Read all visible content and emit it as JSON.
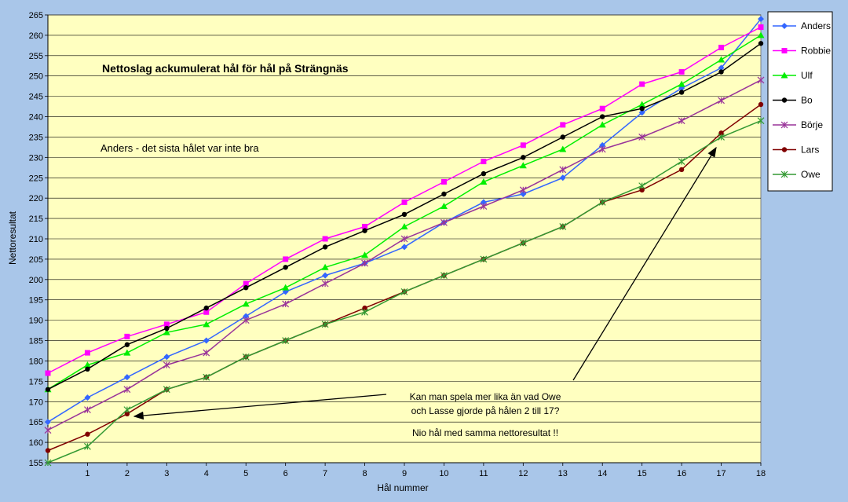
{
  "chart_data": {
    "type": "line",
    "title": "Nettoslag ackumulerat hål för hål på Strängnäs",
    "xlabel": "Hål nummer",
    "ylabel": "Nettoresultat",
    "x": [
      0,
      1,
      2,
      3,
      4,
      5,
      6,
      7,
      8,
      9,
      10,
      11,
      12,
      13,
      14,
      15,
      16,
      17,
      18
    ],
    "x_tick_labels": [
      "1",
      "2",
      "3",
      "4",
      "5",
      "6",
      "7",
      "8",
      "9",
      "10",
      "11",
      "12",
      "13",
      "14",
      "15",
      "16",
      "17",
      "18"
    ],
    "xlim": [
      0,
      18
    ],
    "ylim": [
      155,
      265
    ],
    "y_ticks": [
      155,
      160,
      165,
      170,
      175,
      180,
      185,
      190,
      195,
      200,
      205,
      210,
      215,
      220,
      225,
      230,
      235,
      240,
      245,
      250,
      255,
      260,
      265
    ],
    "grid": "horizontal",
    "legend_position": "right",
    "series": [
      {
        "name": "Anders",
        "color": "#3366ff",
        "marker": "diamond",
        "values": [
          165,
          171,
          176,
          181,
          185,
          191,
          197,
          201,
          204,
          208,
          214,
          219,
          221,
          225,
          233,
          241,
          247,
          252,
          264
        ]
      },
      {
        "name": "Robbie",
        "color": "#ff00ff",
        "marker": "square",
        "values": [
          177,
          182,
          186,
          189,
          192,
          199,
          205,
          210,
          213,
          219,
          224,
          229,
          233,
          238,
          242,
          248,
          251,
          257,
          262
        ]
      },
      {
        "name": "Ulf",
        "color": "#00ee00",
        "marker": "triangle",
        "values": [
          173,
          179,
          182,
          187,
          189,
          194,
          198,
          203,
          206,
          213,
          218,
          224,
          228,
          232,
          238,
          243,
          248,
          254,
          260
        ]
      },
      {
        "name": "Bo",
        "color": "#000000",
        "marker": "circle",
        "values": [
          173,
          178,
          184,
          188,
          193,
          198,
          203,
          208,
          212,
          216,
          221,
          226,
          230,
          235,
          240,
          242,
          246,
          251,
          258
        ]
      },
      {
        "name": "Börje",
        "color": "#993399",
        "marker": "star",
        "values": [
          163,
          168,
          173,
          179,
          182,
          190,
          194,
          199,
          204,
          210,
          214,
          218,
          222,
          227,
          232,
          235,
          239,
          244,
          249
        ]
      },
      {
        "name": "Lars",
        "color": "#800000",
        "marker": "circle",
        "values": [
          158,
          162,
          167,
          173,
          176,
          181,
          185,
          189,
          193,
          197,
          201,
          205,
          209,
          213,
          219,
          222,
          227,
          236,
          243
        ]
      },
      {
        "name": "Owe",
        "color": "#339933",
        "marker": "star",
        "values": [
          155,
          159,
          168,
          173,
          176,
          181,
          185,
          189,
          192,
          197,
          201,
          205,
          209,
          213,
          219,
          223,
          229,
          235,
          239
        ]
      }
    ],
    "annotations": {
      "anders_note": "Anders - det sista hålet var inte bra",
      "question_line1": "Kan man spela mer lika än vad Owe",
      "question_line2": "och Lasse gjorde på hålen 2 till 17?",
      "note": "Nio hål med samma nettoresultat !!"
    },
    "colors": {
      "plot_background": "#ffffc0",
      "outer_background": "#a9c6e9"
    }
  }
}
